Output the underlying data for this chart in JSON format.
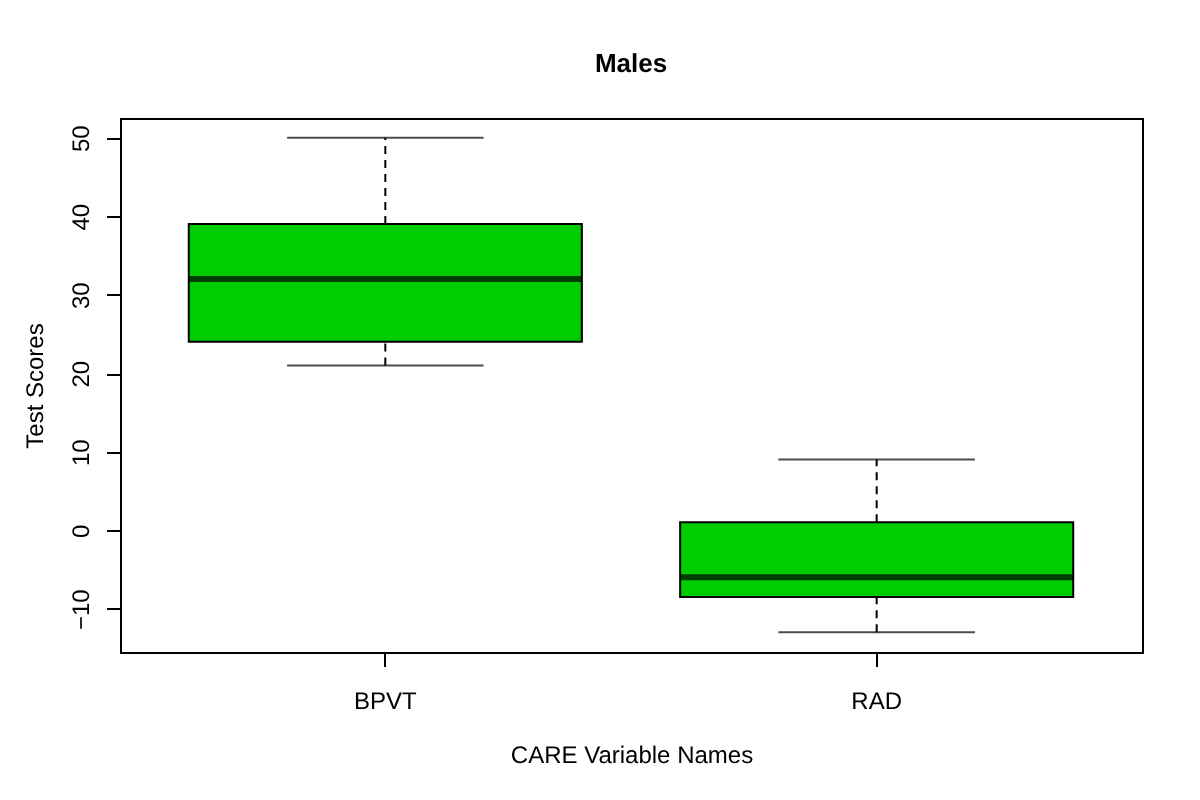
{
  "chart_data": {
    "type": "box",
    "title": "Males",
    "xlabel": "CARE Variable Names",
    "ylabel": "Test Scores",
    "categories": [
      "BPVT",
      "RAD"
    ],
    "series": [
      {
        "color": "#00cd00",
        "boxes": [
          {
            "low": 21,
            "q1": 24,
            "median": 32,
            "q3": 39,
            "high": 50
          },
          {
            "low": -13,
            "q1": -8.5,
            "median": -6,
            "q3": 1,
            "high": 9
          }
        ]
      }
    ],
    "ylim": [
      -15.52,
      52.52
    ],
    "yticks": [
      -10,
      0,
      10,
      20,
      30,
      40,
      50
    ],
    "grid": false,
    "line_style": "dashed"
  }
}
